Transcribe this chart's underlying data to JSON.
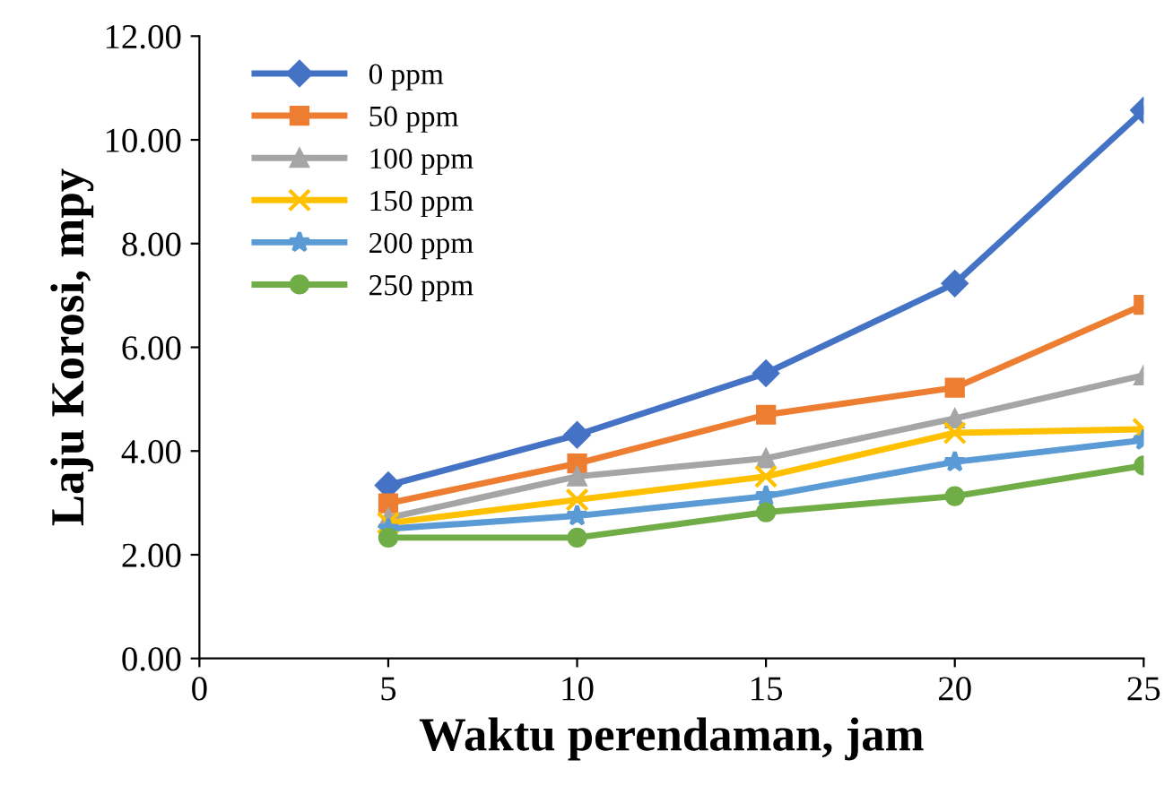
{
  "chart_data": {
    "type": "line",
    "xlabel": "Waktu perendaman, jam",
    "ylabel": "Laju Korosi, mpy",
    "x": [
      5,
      10,
      15,
      20,
      25
    ],
    "series": [
      {
        "name": "0 ppm",
        "color": "#4472c4",
        "marker": "diamond",
        "values": [
          3.34,
          4.31,
          5.5,
          7.23,
          10.57
        ]
      },
      {
        "name": "50 ppm",
        "color": "#ed7d31",
        "marker": "square",
        "values": [
          2.99,
          3.76,
          4.7,
          5.22,
          6.82
        ]
      },
      {
        "name": "100 ppm",
        "color": "#a5a5a5",
        "marker": "triangle",
        "values": [
          2.71,
          3.51,
          3.86,
          4.63,
          5.46
        ]
      },
      {
        "name": "150 ppm",
        "color": "#ffc000",
        "marker": "cross",
        "values": [
          2.61,
          3.06,
          3.51,
          4.35,
          4.42
        ]
      },
      {
        "name": "200 ppm",
        "color": "#5b9bd5",
        "marker": "star",
        "values": [
          2.5,
          2.75,
          3.13,
          3.79,
          4.21
        ]
      },
      {
        "name": "250 ppm",
        "color": "#70ad47",
        "marker": "circle",
        "values": [
          2.33,
          2.33,
          2.82,
          3.13,
          3.72
        ]
      }
    ],
    "xlim": [
      0,
      25
    ],
    "xticks": [
      0,
      5,
      10,
      15,
      20,
      25
    ],
    "ylim": [
      0,
      12
    ],
    "yticks": [
      {
        "value": 0,
        "label": "0.00"
      },
      {
        "value": 2,
        "label": "2.00"
      },
      {
        "value": 4,
        "label": "4.00"
      },
      {
        "value": 6,
        "label": "6.00"
      },
      {
        "value": 8,
        "label": "8.00"
      },
      {
        "value": 10,
        "label": "10.00"
      },
      {
        "value": 12,
        "label": "12.00"
      }
    ],
    "grid": false,
    "legend": "top left",
    "line_style": "solid"
  }
}
